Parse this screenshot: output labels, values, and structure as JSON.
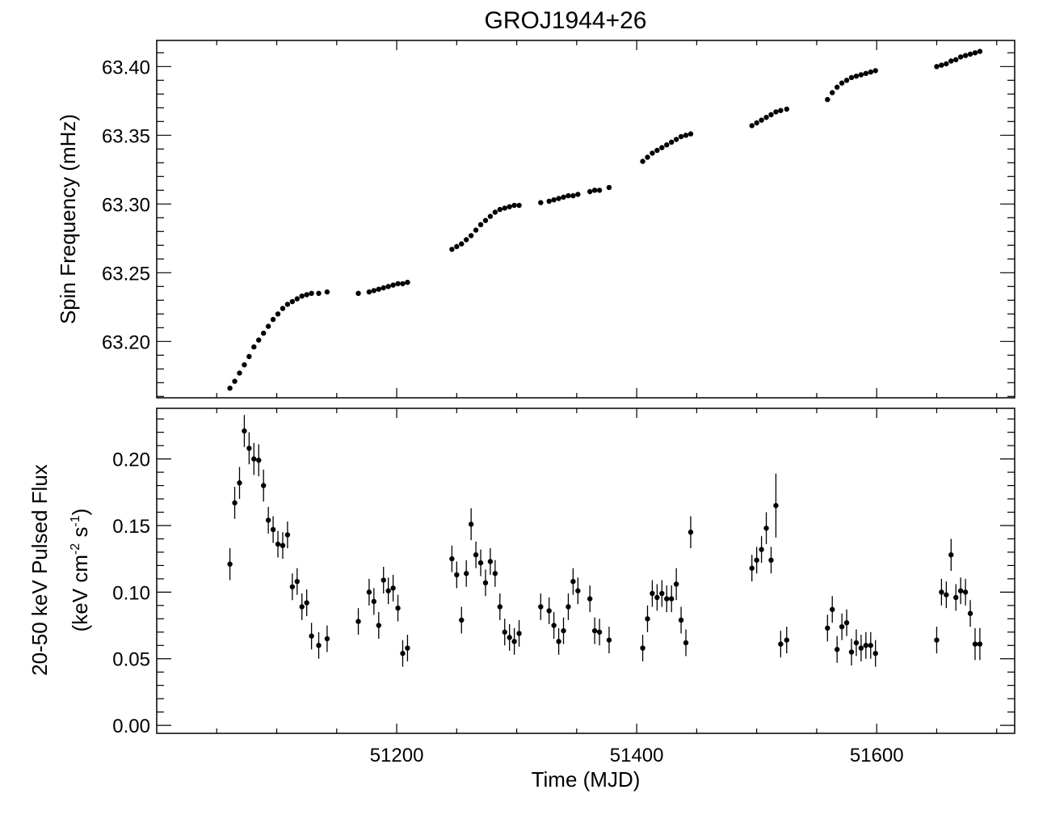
{
  "chart_data": [
    {
      "type": "scatter",
      "panel": "top",
      "title": "GROJ1944+26",
      "ylabel": "Spin Frequency (mHz)",
      "xlim": [
        51000,
        51715
      ],
      "ylim": [
        63.159,
        63.419
      ],
      "yticks": [
        "63.20",
        "63.25",
        "63.30",
        "63.35",
        "63.40"
      ],
      "ytick_values": [
        63.2,
        63.25,
        63.3,
        63.35,
        63.4
      ],
      "grid": false,
      "series": [
        {
          "x": [
            51061,
            51065,
            51069,
            51073,
            51077,
            51081,
            51085,
            51089,
            51093,
            51097,
            51101,
            51105,
            51109,
            51113,
            51117,
            51121,
            51125,
            51129,
            51135,
            51142,
            51168,
            51177,
            51181,
            51185,
            51189,
            51193,
            51197,
            51201,
            51205,
            51209,
            51246,
            51250,
            51254,
            51258,
            51262,
            51266,
            51270,
            51274,
            51278,
            51282,
            51286,
            51290,
            51294,
            51298,
            51302,
            51320,
            51327,
            51331,
            51335,
            51339,
            51343,
            51347,
            51351,
            51361,
            51365,
            51369,
            51377,
            51405,
            51409,
            51413,
            51417,
            51421,
            51425,
            51429,
            51433,
            51437,
            51441,
            51445,
            51496,
            51500,
            51504,
            51508,
            51512,
            51516,
            51520,
            51525,
            51559,
            51563,
            51567,
            51571,
            51575,
            51579,
            51583,
            51587,
            51591,
            51595,
            51599,
            51650,
            51654,
            51658,
            51662,
            51666,
            51670,
            51674,
            51678,
            51682,
            51686
          ],
          "y": [
            63.166,
            63.171,
            63.177,
            63.183,
            63.189,
            63.196,
            63.201,
            63.206,
            63.211,
            63.216,
            63.22,
            63.224,
            63.227,
            63.229,
            63.231,
            63.233,
            63.234,
            63.235,
            63.235,
            63.236,
            63.235,
            63.236,
            63.237,
            63.238,
            63.239,
            63.24,
            63.241,
            63.242,
            63.242,
            63.243,
            63.267,
            63.269,
            63.271,
            63.274,
            63.277,
            63.281,
            63.285,
            63.288,
            63.291,
            63.294,
            63.296,
            63.297,
            63.298,
            63.299,
            63.299,
            63.301,
            63.302,
            63.303,
            63.304,
            63.305,
            63.306,
            63.306,
            63.307,
            63.309,
            63.31,
            63.31,
            63.312,
            63.331,
            63.334,
            63.337,
            63.339,
            63.341,
            63.343,
            63.345,
            63.347,
            63.349,
            63.35,
            63.351,
            63.357,
            63.359,
            63.361,
            63.363,
            63.365,
            63.367,
            63.368,
            63.369,
            63.376,
            63.381,
            63.385,
            63.388,
            63.39,
            63.392,
            63.393,
            63.394,
            63.395,
            63.396,
            63.397,
            63.4,
            63.401,
            63.402,
            63.404,
            63.405,
            63.407,
            63.408,
            63.409,
            63.41,
            63.411
          ]
        }
      ]
    },
    {
      "type": "scatter",
      "panel": "bottom",
      "ylabel": [
        "20-50 keV Pulsed Flux",
        "(keV cm",
        "-2",
        " s",
        "-1",
        ")"
      ],
      "xlabel": "Time (MJD)",
      "xlim": [
        51000,
        51715
      ],
      "ylim": [
        -0.006,
        0.238
      ],
      "xticks": [
        "51200",
        "51400",
        "51600"
      ],
      "xtick_values": [
        51200,
        51400,
        51600
      ],
      "yticks": [
        "0.00",
        "0.05",
        "0.10",
        "0.15",
        "0.20"
      ],
      "ytick_values": [
        0.0,
        0.05,
        0.1,
        0.15,
        0.2
      ],
      "grid": false,
      "series": [
        {
          "error_bars": true,
          "x": [
            51061,
            51065,
            51069,
            51073,
            51077,
            51081,
            51085,
            51089,
            51093,
            51097,
            51101,
            51105,
            51109,
            51113,
            51117,
            51121,
            51125,
            51129,
            51135,
            51142,
            51168,
            51177,
            51181,
            51185,
            51189,
            51193,
            51197,
            51201,
            51205,
            51209,
            51246,
            51250,
            51254,
            51258,
            51262,
            51266,
            51270,
            51274,
            51278,
            51282,
            51286,
            51290,
            51294,
            51298,
            51302,
            51320,
            51327,
            51331,
            51335,
            51339,
            51343,
            51347,
            51351,
            51361,
            51365,
            51369,
            51377,
            51405,
            51409,
            51413,
            51417,
            51421,
            51425,
            51429,
            51433,
            51437,
            51441,
            51445,
            51496,
            51500,
            51504,
            51508,
            51512,
            51516,
            51520,
            51525,
            51559,
            51563,
            51567,
            51571,
            51575,
            51579,
            51583,
            51587,
            51591,
            51595,
            51599,
            51650,
            51654,
            51658,
            51662,
            51666,
            51670,
            51674,
            51678,
            51682,
            51686
          ],
          "y": [
            0.121,
            0.167,
            0.182,
            0.221,
            0.208,
            0.2,
            0.199,
            0.18,
            0.154,
            0.147,
            0.136,
            0.135,
            0.143,
            0.104,
            0.108,
            0.089,
            0.092,
            0.067,
            0.06,
            0.065,
            0.078,
            0.1,
            0.093,
            0.075,
            0.109,
            0.101,
            0.103,
            0.088,
            0.054,
            0.058,
            0.125,
            0.113,
            0.079,
            0.114,
            0.151,
            0.128,
            0.122,
            0.107,
            0.123,
            0.114,
            0.089,
            0.07,
            0.066,
            0.063,
            0.069,
            0.089,
            0.086,
            0.075,
            0.063,
            0.071,
            0.089,
            0.108,
            0.101,
            0.095,
            0.071,
            0.07,
            0.064,
            0.058,
            0.08,
            0.099,
            0.096,
            0.099,
            0.095,
            0.095,
            0.106,
            0.079,
            0.062,
            0.145,
            0.118,
            0.124,
            0.132,
            0.148,
            0.124,
            0.165,
            0.061,
            0.064,
            0.073,
            0.087,
            0.057,
            0.074,
            0.077,
            0.055,
            0.062,
            0.058,
            0.06,
            0.06,
            0.054,
            0.064,
            0.1,
            0.098,
            0.128,
            0.096,
            0.101,
            0.1,
            0.084,
            0.061,
            0.061
          ],
          "err": [
            0.012,
            0.012,
            0.012,
            0.012,
            0.012,
            0.012,
            0.012,
            0.012,
            0.01,
            0.01,
            0.01,
            0.01,
            0.01,
            0.01,
            0.01,
            0.01,
            0.01,
            0.01,
            0.01,
            0.01,
            0.01,
            0.01,
            0.01,
            0.01,
            0.01,
            0.01,
            0.01,
            0.01,
            0.01,
            0.01,
            0.01,
            0.01,
            0.01,
            0.01,
            0.012,
            0.01,
            0.01,
            0.01,
            0.01,
            0.01,
            0.01,
            0.01,
            0.01,
            0.01,
            0.01,
            0.01,
            0.01,
            0.01,
            0.01,
            0.01,
            0.01,
            0.01,
            0.01,
            0.01,
            0.01,
            0.01,
            0.01,
            0.01,
            0.01,
            0.01,
            0.01,
            0.01,
            0.01,
            0.01,
            0.012,
            0.01,
            0.01,
            0.012,
            0.01,
            0.01,
            0.01,
            0.012,
            0.01,
            0.024,
            0.01,
            0.01,
            0.01,
            0.01,
            0.01,
            0.01,
            0.01,
            0.01,
            0.01,
            0.01,
            0.01,
            0.01,
            0.01,
            0.01,
            0.01,
            0.01,
            0.012,
            0.01,
            0.01,
            0.01,
            0.01,
            0.012,
            0.012
          ]
        }
      ]
    }
  ]
}
